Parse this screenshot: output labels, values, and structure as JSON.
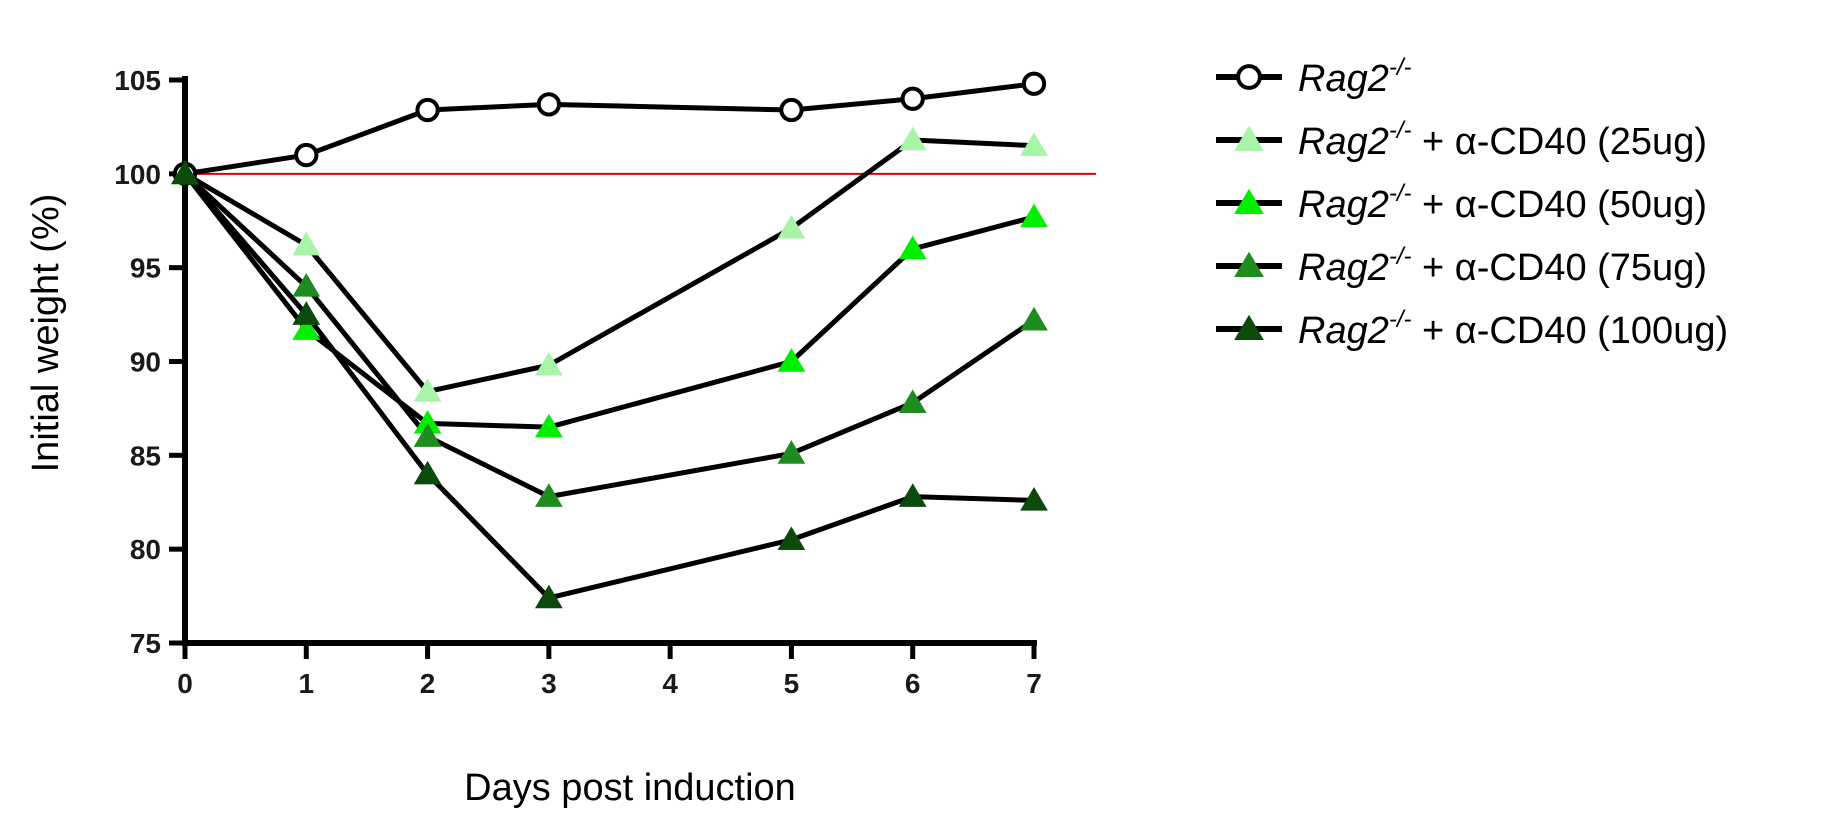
{
  "chart_data": {
    "type": "line",
    "xlabel": "Days post induction",
    "ylabel": "Initial weight (%)",
    "x_ticks": [
      "0",
      "1",
      "2",
      "3",
      "4",
      "5",
      "6",
      "7"
    ],
    "y_ticks": [
      "75",
      "80",
      "85",
      "90",
      "95",
      "100",
      "105"
    ],
    "xlim": [
      0,
      7
    ],
    "ylim": [
      75,
      105
    ],
    "reference_line": {
      "y": 100,
      "color": "#e00000"
    },
    "grid": false,
    "legend_position": "right",
    "series": [
      {
        "name": "Rag2-/-",
        "name_main": "Rag2",
        "name_sup": "-/-",
        "name_rest": "",
        "marker": "circle-open",
        "color": "#000000",
        "x": [
          0,
          1,
          2,
          3,
          5,
          6,
          7
        ],
        "y": [
          100,
          101,
          103.4,
          103.7,
          103.4,
          104,
          104.8
        ]
      },
      {
        "name": "Rag2-/- + α-CD40 (25ug)",
        "name_main": "Rag2",
        "name_sup": "-/-",
        "name_rest": " + α-CD40 (25ug)",
        "marker": "triangle",
        "color": "#a8f5a8",
        "x": [
          0,
          1,
          2,
          3,
          5,
          6,
          7
        ],
        "y": [
          100,
          96.2,
          88.4,
          89.8,
          97.1,
          101.8,
          101.5
        ]
      },
      {
        "name": "Rag2-/- + α-CD40 (50ug)",
        "name_main": "Rag2",
        "name_sup": "-/-",
        "name_rest": " + α-CD40 (50ug)",
        "marker": "triangle",
        "color": "#00ee00",
        "x": [
          0,
          1,
          2,
          3,
          5,
          6,
          7
        ],
        "y": [
          100,
          91.7,
          86.7,
          86.5,
          90,
          96,
          97.7
        ]
      },
      {
        "name": "Rag2-/- + α-CD40 (75ug)",
        "name_main": "Rag2",
        "name_sup": "-/-",
        "name_rest": " + α-CD40 (75ug)",
        "marker": "triangle",
        "color": "#1e8c1e",
        "x": [
          0,
          1,
          2,
          3,
          5,
          6,
          7
        ],
        "y": [
          100,
          94,
          86,
          82.8,
          85.1,
          87.8,
          92.2
        ]
      },
      {
        "name": "Rag2-/- + α-CD40 (100ug)",
        "name_main": "Rag2",
        "name_sup": "-/-",
        "name_rest": " + α-CD40 (100ug)",
        "marker": "triangle",
        "color": "#0b4a0b",
        "x": [
          0,
          1,
          2,
          3,
          5,
          6,
          7
        ],
        "y": [
          100,
          92.5,
          84,
          77.4,
          80.5,
          82.8,
          82.6
        ]
      }
    ]
  }
}
